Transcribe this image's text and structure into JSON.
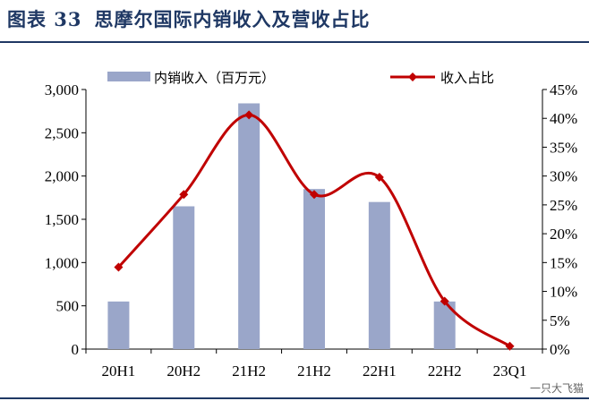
{
  "figure": {
    "label": "图表 33",
    "caption": "思摩尔国际内销收入及营收占比"
  },
  "watermark": "一只大飞猫",
  "colors": {
    "bar": "#9aa6c9",
    "line": "#c00000",
    "title": "#1f3864"
  },
  "chart_data": {
    "type": "bar",
    "categories": [
      "20H1",
      "20H2",
      "21H2",
      "21H2",
      "22H1",
      "22H2",
      "23Q1"
    ],
    "series": [
      {
        "name": "内销收入（百万元）",
        "type": "bar",
        "axis": "left",
        "values": [
          550,
          1650,
          2840,
          1850,
          1700,
          550,
          0
        ]
      },
      {
        "name": "收入占比",
        "type": "line",
        "axis": "right",
        "smooth": true,
        "values": [
          14.2,
          26.8,
          40.6,
          26.8,
          29.8,
          8.3,
          0.5
        ]
      }
    ],
    "y_left": {
      "ylim": [
        0,
        3000
      ],
      "ticks": [
        "0",
        "500",
        "1,000",
        "1,500",
        "2,000",
        "2,500",
        "3,000"
      ]
    },
    "y_right": {
      "ylim": [
        0,
        45
      ],
      "ticks": [
        "0%",
        "5%",
        "10%",
        "15%",
        "20%",
        "25%",
        "30%",
        "35%",
        "40%",
        "45%"
      ]
    },
    "legend_position": "top",
    "grid": false
  }
}
